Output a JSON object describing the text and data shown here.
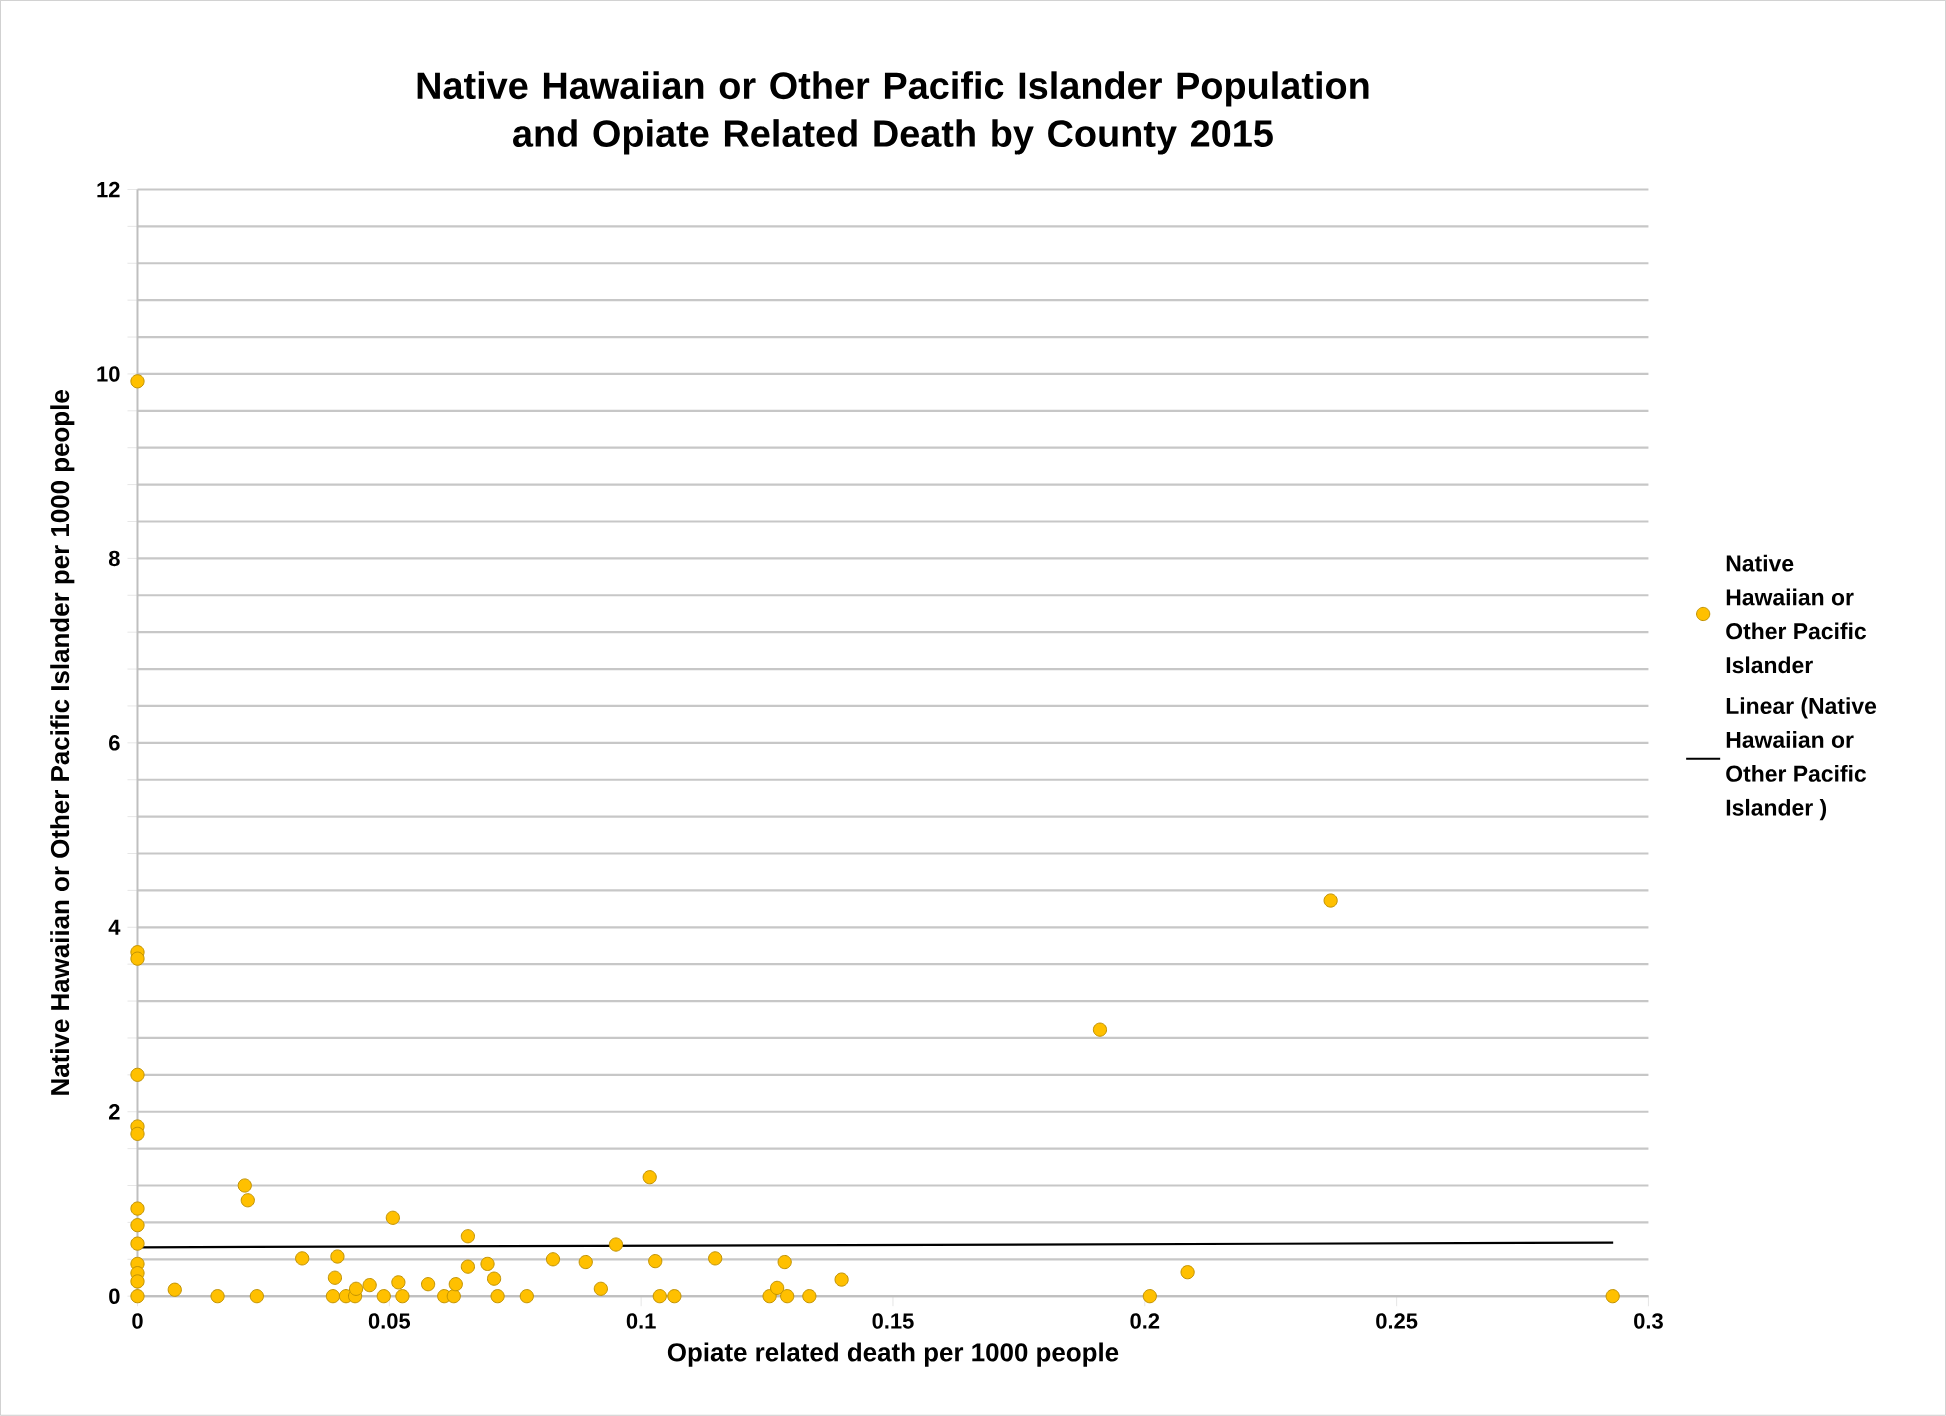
{
  "chart_data": {
    "type": "scatter",
    "title": "Native Hawaiian or Other Pacific Islander Population and Opiate Related Death by County 2015",
    "xlabel": "Opiate related death per 1000 people",
    "ylabel": "Native Hawaiian or Other Pacific Islander per 1000 people",
    "xlim": [
      0,
      0.3
    ],
    "xticks": [
      0,
      0.05,
      0.1,
      0.15,
      0.2,
      0.25,
      0.3
    ],
    "ylim": [
      0,
      12
    ],
    "yticks": [
      0,
      {
        "value": 0.4,
        "label": null
      },
      {
        "value": 0.8,
        "label": null
      },
      {
        "value": 1.2,
        "label": null
      },
      {
        "value": 1.6,
        "label": null
      },
      2,
      {
        "value": 2.4,
        "label": null
      },
      {
        "value": 2.8,
        "label": null
      },
      {
        "value": 3.2,
        "label": null
      },
      {
        "value": 3.6,
        "label": null
      },
      4,
      {
        "value": 4.4,
        "label": null
      },
      {
        "value": 4.8,
        "label": null
      },
      {
        "value": 5.2,
        "label": null
      },
      {
        "value": 5.6,
        "label": null
      },
      6,
      {
        "value": 6.4,
        "label": null
      },
      {
        "value": 6.8,
        "label": null
      },
      {
        "value": 7.2,
        "label": null
      },
      {
        "value": 7.6,
        "label": null
      },
      8,
      {
        "value": 8.4,
        "label": null
      },
      {
        "value": 8.8,
        "label": null
      },
      {
        "value": 9.2,
        "label": null
      },
      {
        "value": 9.6,
        "label": null
      },
      10,
      {
        "value": 10.4,
        "label": null
      },
      {
        "value": 10.8,
        "label": null
      },
      {
        "value": 11.2,
        "label": null
      },
      {
        "value": 11.6,
        "label": null
      },
      12
    ],
    "grid": "y",
    "legend": "right",
    "series": [
      {
        "name": "Native Hawaiian or Other Pacific Islander",
        "type": "scatter",
        "color": "#ffc000",
        "marker": "circle",
        "x": [
          0,
          0,
          0,
          0,
          0,
          0,
          0,
          0,
          0,
          0,
          0,
          0,
          0,
          0.0213,
          0.0219,
          0.0507,
          0.0656,
          0.095,
          0.1017,
          0.0327,
          0.0397,
          0.0074,
          0.0159,
          0.0237,
          0.0392,
          0.0388,
          0.0414,
          0.0432,
          0.0434,
          0.0461,
          0.0489,
          0.0518,
          0.0526,
          0.0577,
          0.0609,
          0.0628,
          0.0632,
          0.0656,
          0.0695,
          0.0708,
          0.0715,
          0.0773,
          0.0825,
          0.089,
          0.092,
          0.1028,
          0.1037,
          0.1066,
          0.1147,
          0.1255,
          0.127,
          0.129,
          0.1285,
          0.1334,
          0.1398,
          0.201,
          0.2085,
          0.1911,
          0.2369,
          0.2929
        ],
        "values": [
          9.92,
          3.73,
          3.66,
          2.4,
          1.84,
          1.76,
          0.95,
          0.77,
          0.57,
          0.35,
          0.25,
          0.16,
          0,
          1.2,
          1.04,
          0.85,
          0.65,
          0.56,
          1.29,
          0.41,
          0.43,
          0.07,
          0,
          0,
          0.2,
          0,
          0,
          0,
          0.08,
          0.12,
          0,
          0.15,
          0,
          0.13,
          0,
          0,
          0.13,
          0.32,
          0.35,
          0.19,
          0,
          0,
          0.4,
          0.37,
          0.08,
          0.38,
          0,
          0,
          0.41,
          0,
          0.09,
          0,
          0.37,
          0,
          0.18,
          0,
          0.26,
          2.89,
          4.29,
          0
        ]
      },
      {
        "name": "Linear (Native Hawaiian or Other Pacific Islander )",
        "type": "line",
        "color": "#000000",
        "marker": "none",
        "line_style": "solid",
        "x": [
          0,
          0.293
        ],
        "values": [
          0.53,
          0.58
        ]
      }
    ]
  }
}
